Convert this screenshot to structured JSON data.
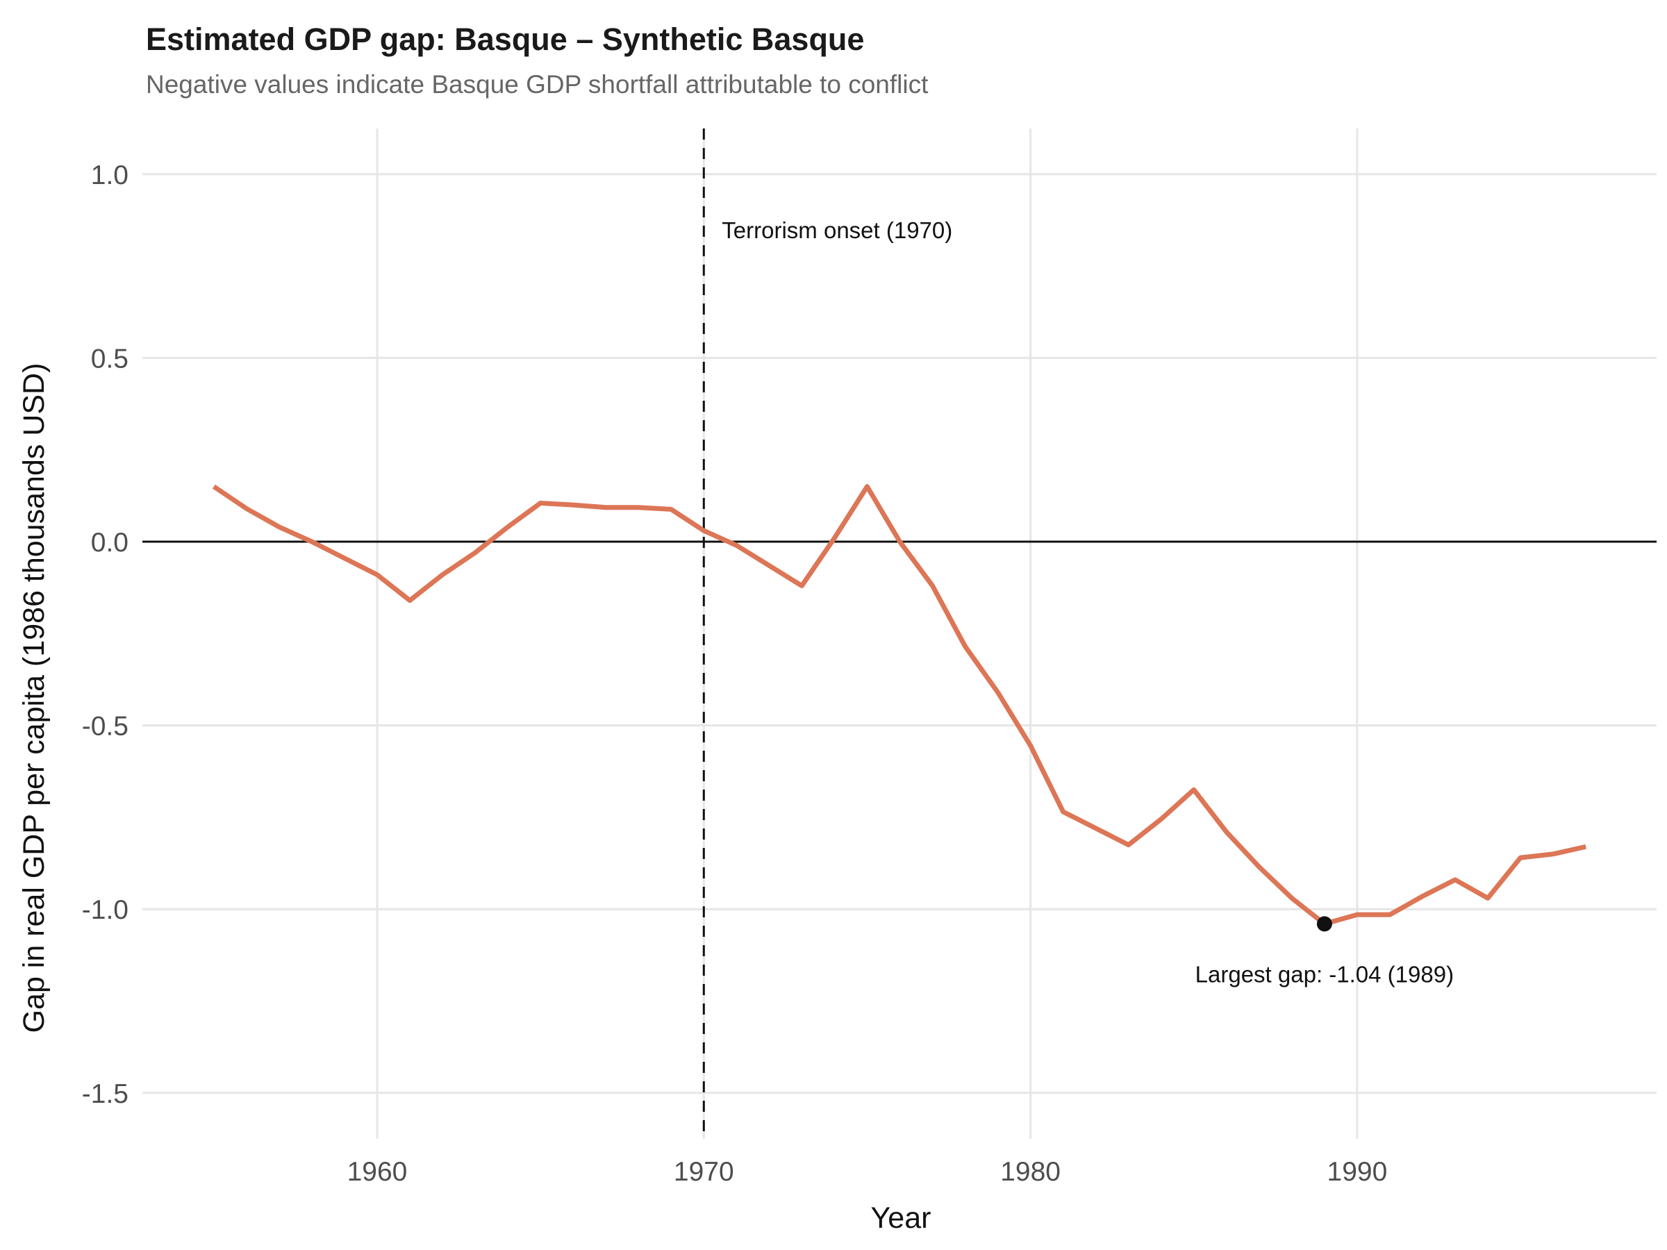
{
  "chart_data": {
    "type": "line",
    "title": "Estimated GDP gap: Basque – Synthetic Basque",
    "subtitle": "Negative values indicate Basque GDP shortfall attributable to conflict",
    "xlabel": "Year",
    "ylabel": "Gap in real GDP per capita (1986 thousands USD)",
    "xlim": [
      1953,
      1999
    ],
    "ylim": [
      -1.62,
      1.12
    ],
    "x_ticks": [
      "1960",
      "1970",
      "1980",
      "1990"
    ],
    "x_tick_values": [
      1960,
      1970,
      1980,
      1990
    ],
    "y_ticks": [
      "1.0",
      "0.5",
      "0.0",
      "-0.5",
      "-1.0",
      "-1.5"
    ],
    "y_tick_values": [
      1.0,
      0.5,
      0.0,
      -0.5,
      -1.0,
      -1.5
    ],
    "grid": true,
    "line_color": "#dc7656",
    "series": [
      {
        "x": [
          1955,
          1956,
          1957,
          1958,
          1959,
          1960,
          1961,
          1962,
          1963,
          1964,
          1965,
          1966,
          1967,
          1968,
          1969,
          1970,
          1971,
          1972,
          1973,
          1974,
          1975,
          1976,
          1977,
          1978,
          1979,
          1980,
          1981,
          1982,
          1983,
          1984,
          1985,
          1986,
          1987,
          1988,
          1989,
          1990,
          1991,
          1992,
          1993,
          1994,
          1995,
          1996,
          1997
        ],
        "values": [
          0.15,
          0.09,
          0.04,
          0.0,
          -0.045,
          -0.09,
          -0.16,
          -0.09,
          -0.03,
          0.04,
          0.105,
          0.1,
          0.093,
          0.093,
          0.088,
          0.03,
          -0.01,
          -0.065,
          -0.12,
          0.01,
          0.15,
          0.0,
          -0.12,
          -0.285,
          -0.41,
          -0.555,
          -0.735,
          -0.78,
          -0.825,
          -0.755,
          -0.675,
          -0.79,
          -0.885,
          -0.97,
          -1.04,
          -1.015,
          -1.015,
          -0.965,
          -0.92,
          -0.97,
          -0.86,
          -0.85,
          -0.83
        ]
      }
    ],
    "reference_lines": {
      "horizontal": 0,
      "vertical": 1970,
      "vertical_label": "Terrorism onset (1970)"
    },
    "highlight_point": {
      "x": 1989,
      "y": -1.04,
      "label": "Largest gap: -1.04 (1989)"
    }
  }
}
